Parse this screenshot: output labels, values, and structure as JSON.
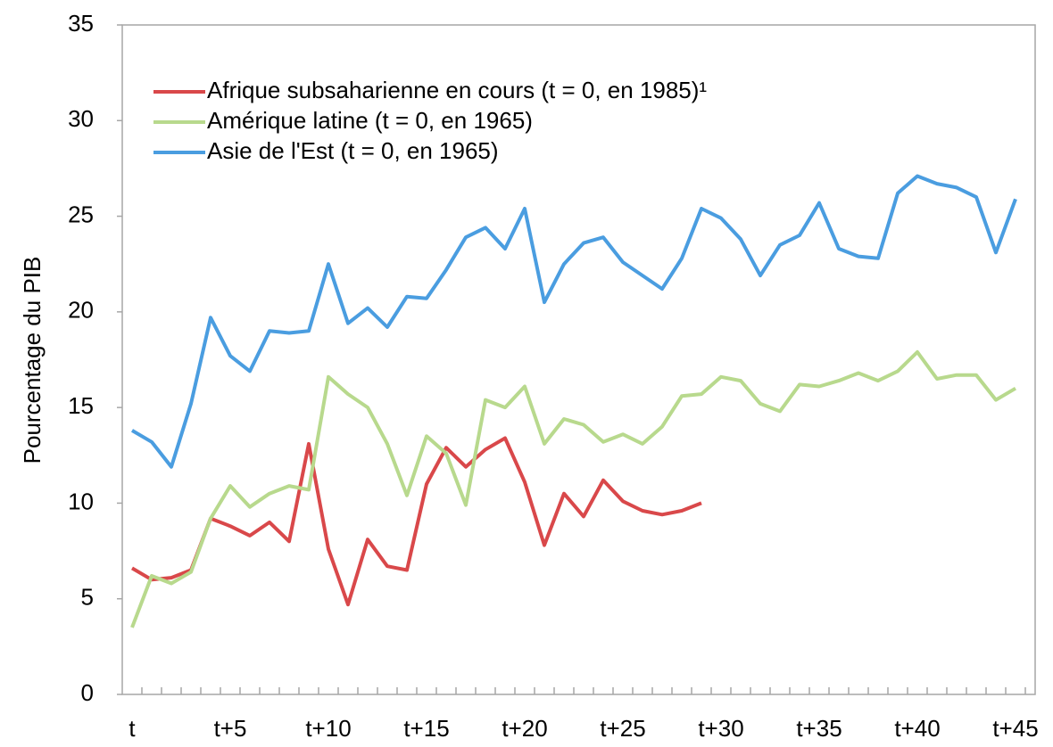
{
  "chart_data": {
    "type": "line",
    "y_label": "Pourcentage du PIB",
    "categories": [
      "t",
      null,
      null,
      null,
      null,
      "t+5",
      null,
      null,
      null,
      null,
      "t+10",
      null,
      null,
      null,
      null,
      "t+15",
      null,
      null,
      null,
      null,
      "t+20",
      null,
      null,
      null,
      null,
      "t+25",
      null,
      null,
      null,
      null,
      "t+30",
      null,
      null,
      null,
      null,
      "t+35",
      null,
      null,
      null,
      null,
      "t+40",
      null,
      null,
      null,
      null,
      "t+45"
    ],
    "series": [
      {
        "name": "Afrique subsaharienne en cours (t = 0, en 1985)¹",
        "color": "#d9484a",
        "values": [
          6.6,
          6.0,
          6.1,
          6.5,
          9.2,
          8.8,
          8.3,
          9.0,
          8.0,
          13.1,
          7.6,
          4.7,
          8.1,
          6.7,
          6.5,
          11.0,
          12.9,
          11.9,
          12.8,
          13.4,
          11.1,
          7.8,
          10.5,
          9.3,
          11.2,
          10.1,
          9.6,
          9.4,
          9.6,
          10.0,
          null,
          null,
          null,
          null,
          null,
          null,
          null,
          null,
          null,
          null,
          null,
          null,
          null,
          null,
          null,
          null
        ]
      },
      {
        "name": "Amérique latine (t = 0, en 1965)",
        "color": "#b8d98d",
        "values": [
          3.5,
          6.2,
          5.8,
          6.4,
          9.2,
          10.9,
          9.8,
          10.5,
          10.9,
          10.7,
          16.6,
          15.7,
          15.0,
          13.1,
          10.4,
          13.5,
          12.6,
          9.9,
          15.4,
          15.0,
          16.1,
          13.1,
          14.4,
          14.1,
          13.2,
          13.6,
          13.1,
          14.0,
          15.6,
          15.7,
          16.6,
          16.4,
          15.2,
          14.8,
          16.2,
          16.1,
          16.4,
          16.8,
          16.4,
          16.9,
          17.9,
          16.5,
          16.7,
          16.7,
          15.4,
          16.0
        ]
      },
      {
        "name": "Asie de l'Est (t = 0, en 1965)",
        "color": "#4a9de0",
        "values": [
          13.8,
          13.2,
          11.9,
          15.2,
          19.7,
          17.7,
          16.9,
          19.0,
          18.9,
          19.0,
          22.5,
          19.4,
          20.2,
          19.2,
          20.8,
          20.7,
          22.2,
          23.9,
          24.4,
          23.3,
          25.4,
          20.5,
          22.5,
          23.6,
          23.9,
          22.6,
          21.9,
          21.2,
          22.8,
          25.4,
          24.9,
          23.8,
          21.9,
          23.5,
          24.0,
          25.7,
          23.3,
          22.9,
          22.8,
          26.2,
          27.1,
          26.7,
          26.5,
          26.0,
          23.1,
          25.9
        ]
      }
    ],
    "ylim": [
      0,
      35
    ],
    "yticks": [
      0,
      5,
      10,
      15,
      20,
      25,
      30,
      35
    ],
    "grid": false,
    "legend": "upper left"
  }
}
